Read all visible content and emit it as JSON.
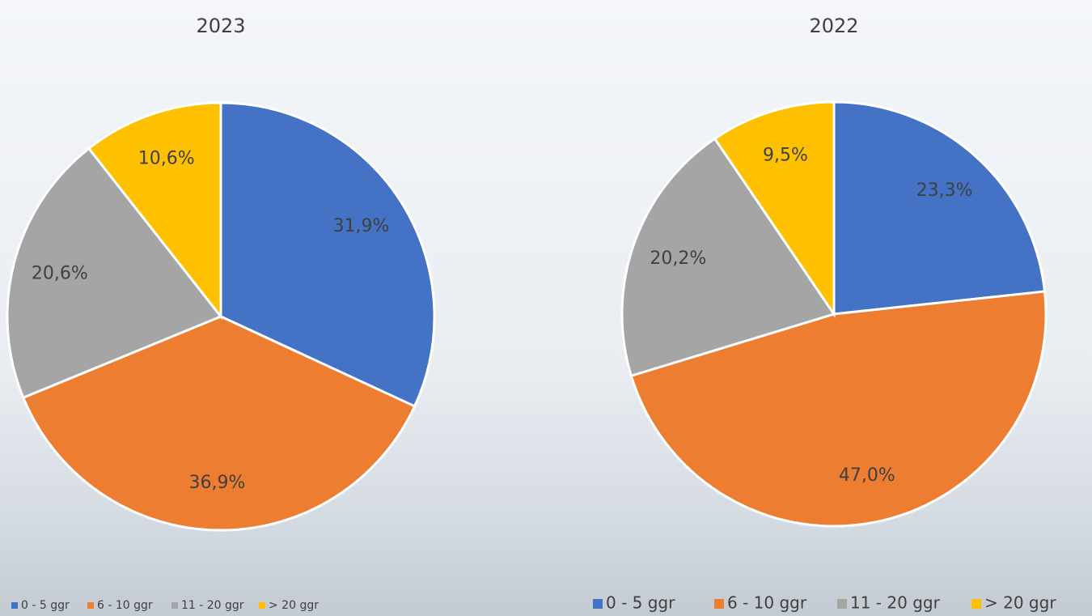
{
  "chart_data": [
    {
      "type": "pie",
      "title": "2023",
      "categories": [
        "0 - 5 ggr",
        "6 - 10 ggr",
        "11 - 20 ggr",
        "> 20 ggr"
      ],
      "values": [
        31.9,
        36.9,
        20.6,
        10.6
      ],
      "value_labels": [
        "31,9%",
        "36,9%",
        "20,6%",
        "10,6%"
      ],
      "colors": [
        "#4472c4",
        "#ed7d31",
        "#a5a5a5",
        "#ffc000"
      ]
    },
    {
      "type": "pie",
      "title": "2022",
      "categories": [
        "0 - 5 ggr",
        "6 - 10 ggr",
        "11 - 20 ggr",
        "> 20 ggr"
      ],
      "values": [
        23.3,
        47.0,
        20.2,
        9.5
      ],
      "value_labels": [
        "23,3%",
        "47,0%",
        "20,2%",
        "9,5%"
      ],
      "colors": [
        "#4472c4",
        "#ed7d31",
        "#a5a5a5",
        "#ffc000"
      ]
    }
  ]
}
